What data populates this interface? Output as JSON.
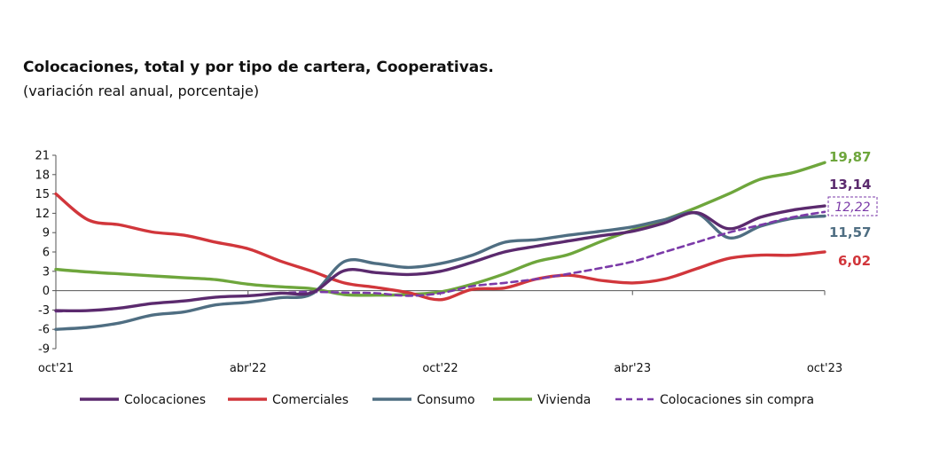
{
  "title": "Colocaciones, total y por tipo de cartera, Cooperativas.",
  "subtitle": "(variación real anual, porcentaje)",
  "chart_data": {
    "type": "line",
    "ylim": [
      -9,
      21
    ],
    "yticks": [
      21,
      18,
      15,
      12,
      9,
      6,
      3,
      0,
      -3,
      -6,
      -9
    ],
    "xlim": [
      0,
      24
    ],
    "xticks": [
      {
        "x": 0,
        "label": "oct'21"
      },
      {
        "x": 6,
        "label": "abr'22"
      },
      {
        "x": 12,
        "label": "oct'22"
      },
      {
        "x": 18,
        "label": "abr'23"
      },
      {
        "x": 24,
        "label": "oct'23"
      }
    ],
    "series": [
      {
        "name": "Colocaciones",
        "color": "#5b2a6e",
        "dash": false,
        "end_label": "13,14",
        "points": [
          [
            0,
            -3.1
          ],
          [
            1,
            -3.1
          ],
          [
            2,
            -2.7
          ],
          [
            3,
            -2.0
          ],
          [
            4,
            -1.6
          ],
          [
            5,
            -1.0
          ],
          [
            6,
            -0.8
          ],
          [
            7,
            -0.4
          ],
          [
            8,
            -0.3
          ],
          [
            9,
            3.1
          ],
          [
            10,
            2.8
          ],
          [
            11,
            2.5
          ],
          [
            12,
            3.0
          ],
          [
            13,
            4.4
          ],
          [
            14,
            6.0
          ],
          [
            15,
            6.9
          ],
          [
            16,
            7.7
          ],
          [
            17,
            8.5
          ],
          [
            18,
            9.2
          ],
          [
            19,
            10.5
          ],
          [
            20,
            12.1
          ],
          [
            21,
            9.6
          ],
          [
            22,
            11.4
          ],
          [
            23,
            12.5
          ],
          [
            24,
            13.14
          ]
        ]
      },
      {
        "name": "Comerciales",
        "color": "#d1363b",
        "dash": false,
        "end_label": "6,02",
        "points": [
          [
            0,
            15.0
          ],
          [
            1,
            11.0
          ],
          [
            2,
            10.2
          ],
          [
            3,
            9.1
          ],
          [
            4,
            8.6
          ],
          [
            5,
            7.5
          ],
          [
            6,
            6.5
          ],
          [
            7,
            4.6
          ],
          [
            8,
            3.0
          ],
          [
            9,
            1.2
          ],
          [
            10,
            0.5
          ],
          [
            11,
            -0.3
          ],
          [
            12,
            -1.4
          ],
          [
            13,
            0.2
          ],
          [
            14,
            0.4
          ],
          [
            15,
            1.8
          ],
          [
            16,
            2.4
          ],
          [
            17,
            1.6
          ],
          [
            18,
            1.2
          ],
          [
            19,
            1.8
          ],
          [
            20,
            3.4
          ],
          [
            21,
            5.0
          ],
          [
            22,
            5.5
          ],
          [
            23,
            5.5
          ],
          [
            24,
            6.02
          ]
        ]
      },
      {
        "name": "Consumo",
        "color": "#4f6e82",
        "dash": false,
        "end_label": "11,57",
        "points": [
          [
            0,
            -6.0
          ],
          [
            1,
            -5.7
          ],
          [
            2,
            -5.0
          ],
          [
            3,
            -3.8
          ],
          [
            4,
            -3.3
          ],
          [
            5,
            -2.2
          ],
          [
            6,
            -1.8
          ],
          [
            7,
            -1.1
          ],
          [
            8,
            -0.5
          ],
          [
            9,
            4.5
          ],
          [
            10,
            4.2
          ],
          [
            11,
            3.6
          ],
          [
            12,
            4.2
          ],
          [
            13,
            5.5
          ],
          [
            14,
            7.5
          ],
          [
            15,
            7.9
          ],
          [
            16,
            8.6
          ],
          [
            17,
            9.2
          ],
          [
            18,
            9.9
          ],
          [
            19,
            11.0
          ],
          [
            20,
            12.0
          ],
          [
            21,
            8.2
          ],
          [
            22,
            10.0
          ],
          [
            23,
            11.2
          ],
          [
            24,
            11.57
          ]
        ]
      },
      {
        "name": "Vivienda",
        "color": "#6ea63c",
        "dash": false,
        "end_label": "19,87",
        "points": [
          [
            0,
            3.3
          ],
          [
            1,
            2.9
          ],
          [
            2,
            2.6
          ],
          [
            3,
            2.3
          ],
          [
            4,
            2.0
          ],
          [
            5,
            1.7
          ],
          [
            6,
            1.0
          ],
          [
            7,
            0.6
          ],
          [
            8,
            0.3
          ],
          [
            9,
            -0.6
          ],
          [
            10,
            -0.7
          ],
          [
            11,
            -0.6
          ],
          [
            12,
            -0.2
          ],
          [
            13,
            1.0
          ],
          [
            14,
            2.6
          ],
          [
            15,
            4.5
          ],
          [
            16,
            5.6
          ],
          [
            17,
            7.6
          ],
          [
            18,
            9.4
          ],
          [
            19,
            11.0
          ],
          [
            20,
            12.9
          ],
          [
            21,
            15.0
          ],
          [
            22,
            17.3
          ],
          [
            23,
            18.3
          ],
          [
            24,
            19.87
          ]
        ]
      },
      {
        "name": "Colocaciones sin compra",
        "color": "#7b3aa8",
        "dash": true,
        "end_label": "12,22",
        "points": [
          [
            0,
            -3.2
          ],
          [
            1,
            -3.1
          ],
          [
            2,
            -2.7
          ],
          [
            3,
            -2.0
          ],
          [
            4,
            -1.6
          ],
          [
            5,
            -1.0
          ],
          [
            6,
            -0.8
          ],
          [
            7,
            -0.4
          ],
          [
            8,
            -0.2
          ],
          [
            9,
            -0.3
          ],
          [
            10,
            -0.4
          ],
          [
            11,
            -0.8
          ],
          [
            12,
            -0.4
          ],
          [
            13,
            0.7
          ],
          [
            14,
            1.2
          ],
          [
            15,
            1.8
          ],
          [
            16,
            2.6
          ],
          [
            17,
            3.5
          ],
          [
            18,
            4.5
          ],
          [
            19,
            6.0
          ],
          [
            20,
            7.5
          ],
          [
            21,
            9.0
          ],
          [
            22,
            10.2
          ],
          [
            23,
            11.4
          ],
          [
            24,
            12.22
          ]
        ]
      }
    ],
    "legend": {
      "position": "bottom",
      "items": [
        "Colocaciones",
        "Comerciales",
        "Consumo",
        "Vivienda",
        "Colocaciones sin compra"
      ]
    }
  }
}
